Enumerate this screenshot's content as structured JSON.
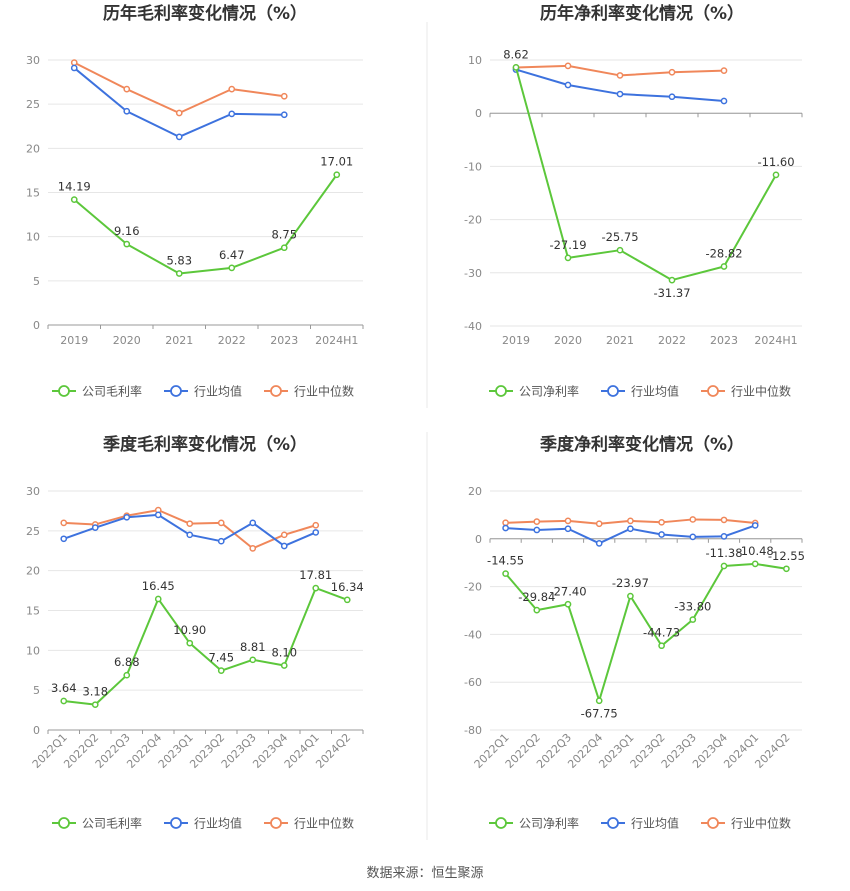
{
  "source_text": "数据来源：恒生聚源",
  "legend_labels": {
    "company_gross": "公司毛利率",
    "company_net": "公司净利率",
    "industry_avg": "行业均值",
    "industry_median": "行业中位数"
  },
  "colors": {
    "company": "#5cc73b",
    "industry_avg": "#3d72de",
    "industry_median": "#f0875a",
    "grid": "#e6e6e6",
    "axis": "#999999",
    "text": "#333333",
    "tick": "#888888"
  },
  "chart_data": [
    {
      "type": "line",
      "title": "历年毛利率变化情况（%）",
      "categories": [
        "2019",
        "2020",
        "2021",
        "2022",
        "2023",
        "2024H1"
      ],
      "yticks": [
        0,
        5,
        10,
        15,
        20,
        25,
        30
      ],
      "ylim": [
        0,
        30
      ],
      "legend_position": "bottom",
      "series": [
        {
          "name": "公司毛利率",
          "values": [
            14.19,
            9.16,
            5.83,
            6.47,
            8.75,
            17.01
          ],
          "labels": [
            "14.19",
            "9.16",
            "5.83",
            "6.47",
            "8.75",
            "17.01"
          ]
        },
        {
          "name": "行业均值",
          "values": [
            29.1,
            24.2,
            21.3,
            23.9,
            23.8,
            null
          ]
        },
        {
          "name": "行业中位数",
          "values": [
            29.7,
            26.7,
            24.0,
            26.7,
            25.9,
            null
          ]
        }
      ]
    },
    {
      "type": "line",
      "title": "历年净利率变化情况（%）",
      "categories": [
        "2019",
        "2020",
        "2021",
        "2022",
        "2023",
        "2024H1"
      ],
      "yticks": [
        -40,
        -30,
        -20,
        -10,
        0,
        10
      ],
      "ylim": [
        -40,
        10
      ],
      "legend_position": "bottom",
      "series": [
        {
          "name": "公司净利率",
          "values": [
            8.62,
            -27.19,
            -25.75,
            -31.37,
            -28.82,
            -11.6
          ],
          "labels": [
            "8.62",
            "-27.19",
            "-25.75",
            "-31.37",
            "-28.82",
            "-11.60"
          ]
        },
        {
          "name": "行业均值",
          "values": [
            8.2,
            5.3,
            3.6,
            3.1,
            2.3,
            null
          ]
        },
        {
          "name": "行业中位数",
          "values": [
            8.6,
            8.9,
            7.1,
            7.7,
            8.0,
            null
          ]
        }
      ]
    },
    {
      "type": "line",
      "title": "季度毛利率变化情况（%）",
      "categories": [
        "2022Q1",
        "2022Q2",
        "2022Q3",
        "2022Q4",
        "2023Q1",
        "2023Q2",
        "2023Q3",
        "2023Q4",
        "2024Q1",
        "2024Q2"
      ],
      "yticks": [
        0,
        5,
        10,
        15,
        20,
        25,
        30
      ],
      "ylim": [
        0,
        30
      ],
      "legend_position": "bottom",
      "series": [
        {
          "name": "公司毛利率",
          "values": [
            3.64,
            3.18,
            6.88,
            16.45,
            10.9,
            7.45,
            8.81,
            8.1,
            17.81,
            16.34
          ],
          "labels": [
            "3.64",
            "3.18",
            "6.88",
            "16.45",
            "10.90",
            "7.45",
            "8.81",
            "8.10",
            "17.81",
            "16.34"
          ]
        },
        {
          "name": "行业均值",
          "values": [
            24.0,
            25.4,
            26.7,
            27.0,
            24.5,
            23.7,
            26.0,
            23.1,
            24.8,
            null
          ]
        },
        {
          "name": "行业中位数",
          "values": [
            26.0,
            25.8,
            26.9,
            27.6,
            25.9,
            26.0,
            22.8,
            24.5,
            25.7,
            null
          ]
        }
      ]
    },
    {
      "type": "line",
      "title": "季度净利率变化情况（%）",
      "categories": [
        "2022Q1",
        "2022Q2",
        "2022Q3",
        "2022Q4",
        "2023Q1",
        "2023Q2",
        "2023Q3",
        "2023Q4",
        "2024Q1",
        "2024Q2"
      ],
      "yticks": [
        -80,
        -60,
        -40,
        -20,
        0,
        20
      ],
      "ylim": [
        -80,
        20
      ],
      "legend_position": "bottom",
      "series": [
        {
          "name": "公司净利率",
          "values": [
            -14.55,
            -29.84,
            -27.4,
            -67.75,
            -23.97,
            -44.73,
            -33.8,
            -11.38,
            -10.48,
            -12.55
          ],
          "labels": [
            "-14.55",
            "-29.84",
            "-27.40",
            "-67.75",
            "-23.97",
            "-44.73",
            "-33.80",
            "-11.38",
            "-10.48",
            "-12.55"
          ]
        },
        {
          "name": "行业均值",
          "values": [
            4.5,
            3.7,
            4.2,
            -1.9,
            4.2,
            1.8,
            0.8,
            1.0,
            5.6,
            null
          ]
        },
        {
          "name": "行业中位数",
          "values": [
            6.7,
            7.2,
            7.5,
            6.3,
            7.5,
            6.9,
            8.1,
            7.9,
            6.6,
            null
          ]
        }
      ]
    }
  ]
}
